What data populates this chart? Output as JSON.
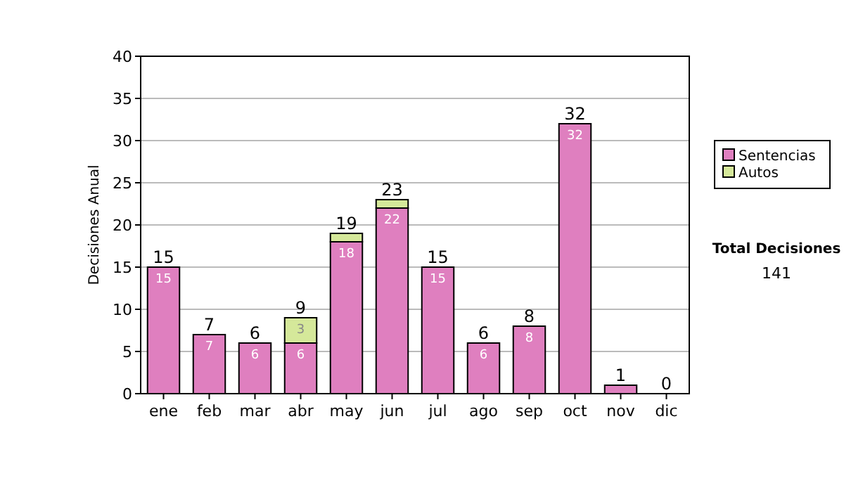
{
  "chart_data": {
    "type": "bar",
    "ylabel": "Decisiones Anual",
    "categories": [
      "ene",
      "feb",
      "mar",
      "abr",
      "may",
      "jun",
      "jul",
      "ago",
      "sep",
      "oct",
      "nov",
      "dic"
    ],
    "series": [
      {
        "name": "Sentencias",
        "color": "#df7fbf",
        "values": [
          15,
          7,
          6,
          6,
          18,
          22,
          15,
          6,
          8,
          32,
          1,
          0
        ],
        "value_labels": [
          "15",
          "7",
          "6",
          "6",
          "18",
          "22",
          "15",
          "6",
          "8",
          "32",
          null,
          null
        ]
      },
      {
        "name": "Autos",
        "color": "#d5e89a",
        "values": [
          0,
          0,
          0,
          3,
          1,
          1,
          0,
          0,
          0,
          0,
          0,
          0
        ],
        "value_labels": [
          null,
          null,
          null,
          "3",
          null,
          null,
          null,
          null,
          null,
          null,
          null,
          null
        ]
      }
    ],
    "stacked": true,
    "totals": [
      "15",
      "7",
      "6",
      "9",
      "19",
      "23",
      "15",
      "6",
      "8",
      "32",
      "1",
      "0"
    ],
    "ylim": [
      0,
      40
    ],
    "yticks": [
      0,
      5,
      10,
      15,
      20,
      25,
      30,
      35,
      40
    ],
    "grid": "y",
    "legend": "right",
    "annotations": [
      "Total Decisiones",
      "141"
    ]
  }
}
